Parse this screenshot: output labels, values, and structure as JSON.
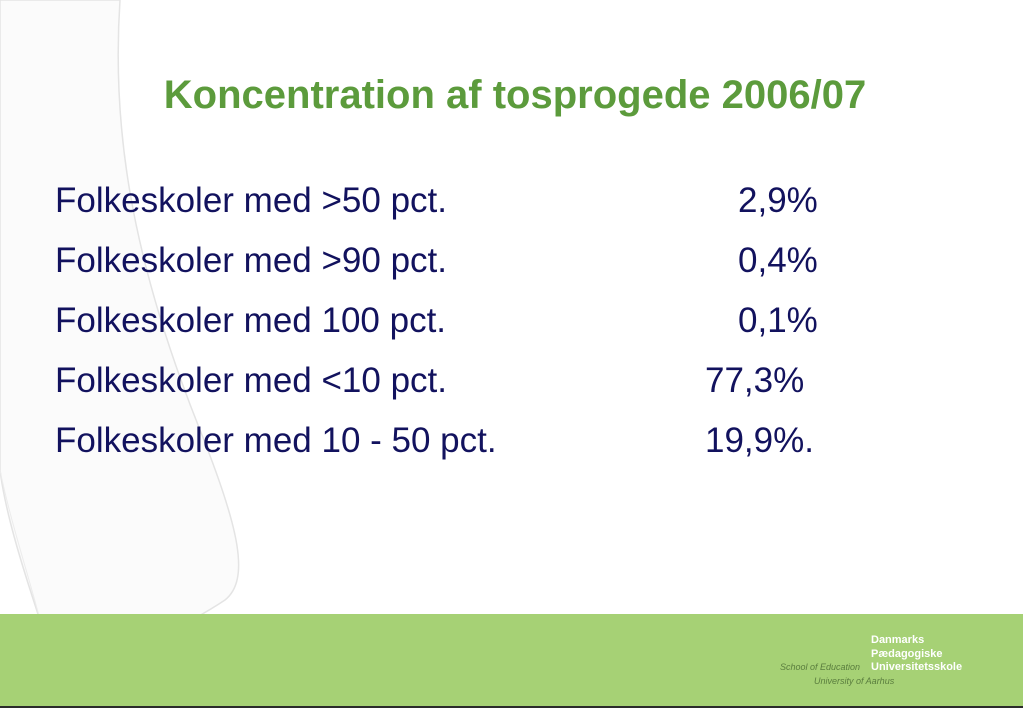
{
  "slide": {
    "title": "Koncentration af tosprogede 2006/07",
    "rows": [
      {
        "label": "Folkeskoler med >50 pct.",
        "value": "2,9%"
      },
      {
        "label": "Folkeskoler med >90 pct.",
        "value": "0,4%"
      },
      {
        "label": "Folkeskoler med 100 pct.",
        "value": "0,1%"
      },
      {
        "label": "Folkeskoler med <10 pct.",
        "value": "77,3%"
      },
      {
        "label": "Folkeskoler med 10 - 50 pct.",
        "value": "19,9%."
      }
    ]
  },
  "logo": {
    "name": "Danmarks\nPædagogiske\nUniversitetsskole",
    "subtitle": "School of Education",
    "university": "University of Aarhus"
  },
  "colors": {
    "title": "#5c9b3c",
    "body_text": "#12125e",
    "footer_band": "#a6d175"
  }
}
